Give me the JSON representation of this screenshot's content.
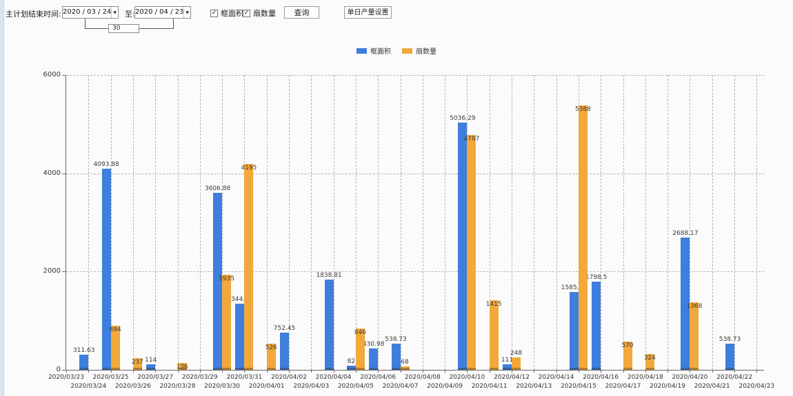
{
  "toolbar": {
    "plan_end_label": "主计划结束时间:",
    "date_from": "2020 / 03 / 24",
    "to_label": "至:",
    "date_to": "2020 / 04 / 23",
    "interval_days": "30",
    "checkboxes": [
      {
        "label": "框面积",
        "checked": true
      },
      {
        "label": "扇数量",
        "checked": true
      }
    ],
    "query_button": "查询",
    "daily_output_button": "单日产量设置"
  },
  "chart_data": {
    "type": "bar",
    "title": "",
    "xlabel": "",
    "ylabel": "",
    "ylim": [
      0,
      6000
    ],
    "yticks": [
      0,
      2000,
      4000,
      6000
    ],
    "grid": "dashed",
    "legend_position": "top-center",
    "bar_value_labels": true,
    "categories": [
      "2020/03/23",
      "2020/03/24",
      "2020/03/25",
      "2020/03/26",
      "2020/03/27",
      "2020/03/28",
      "2020/03/29",
      "2020/03/30",
      "2020/03/31",
      "2020/04/01",
      "2020/04/02",
      "2020/04/03",
      "2020/04/04",
      "2020/04/05",
      "2020/04/06",
      "2020/04/07",
      "2020/04/08",
      "2020/04/09",
      "2020/04/10",
      "2020/04/11",
      "2020/04/12",
      "2020/04/13",
      "2020/04/14",
      "2020/04/15",
      "2020/04/16",
      "2020/04/17",
      "2020/04/18",
      "2020/04/19",
      "2020/04/20",
      "2020/04/21",
      "2020/04/22",
      "2020/04/23"
    ],
    "series": [
      {
        "name": "框面积",
        "color": "#3E7EDD",
        "values": [
          null,
          311.63,
          4093.88,
          null,
          114,
          null,
          null,
          3606.88,
          1344.95,
          null,
          752.45,
          null,
          1838.81,
          82,
          430.98,
          538.73,
          null,
          null,
          5036.29,
          null,
          111,
          null,
          null,
          1585.96,
          1798.5,
          null,
          null,
          null,
          2688.17,
          null,
          538.73,
          null
        ]
      },
      {
        "name": "扇数量",
        "color": "#F2A83B",
        "values": [
          null,
          null,
          894,
          237,
          null,
          136,
          null,
          1935,
          4195,
          526,
          null,
          null,
          null,
          846,
          null,
          68,
          null,
          null,
          4787,
          1415,
          248,
          null,
          null,
          5388,
          null,
          570,
          324,
          null,
          1368,
          null,
          null,
          null
        ],
        "label_above_indices": [
          15,
          20
        ]
      }
    ]
  }
}
